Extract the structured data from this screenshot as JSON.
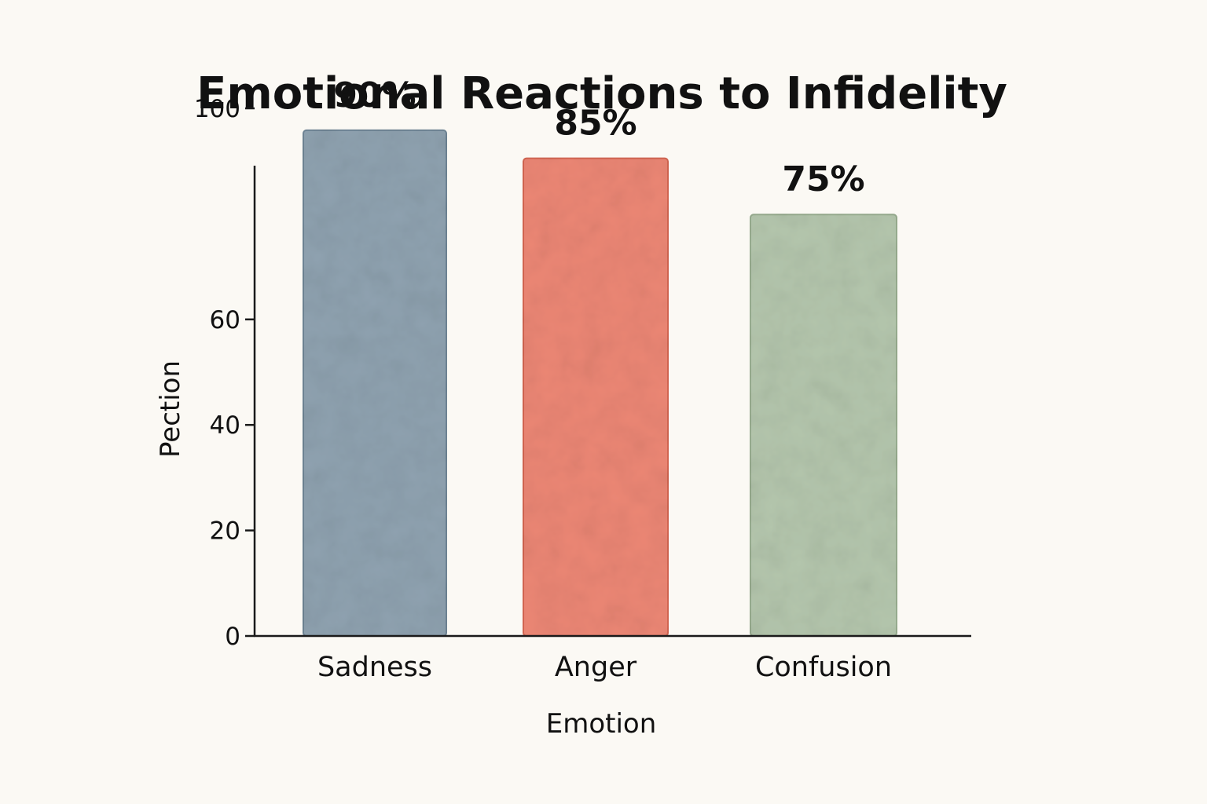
{
  "chart_data": {
    "type": "bar",
    "title": "Emotional Reactions to Infidelity",
    "xlabel": "Emotion",
    "ylabel": "Pection",
    "categories": [
      "Sadness",
      "Anger",
      "Confusion"
    ],
    "values": [
      90,
      85,
      75
    ],
    "data_labels": [
      "90%",
      "85%",
      "75%"
    ],
    "yticks": [
      0,
      20,
      40,
      60,
      100
    ],
    "ylim": [
      0,
      110
    ],
    "grid": false,
    "legend": "none",
    "colors": [
      "#8fa2b0",
      "#ec8775",
      "#b4c6ad"
    ],
    "edge_colors": [
      "#6f8595",
      "#d46652",
      "#98ad90"
    ]
  }
}
